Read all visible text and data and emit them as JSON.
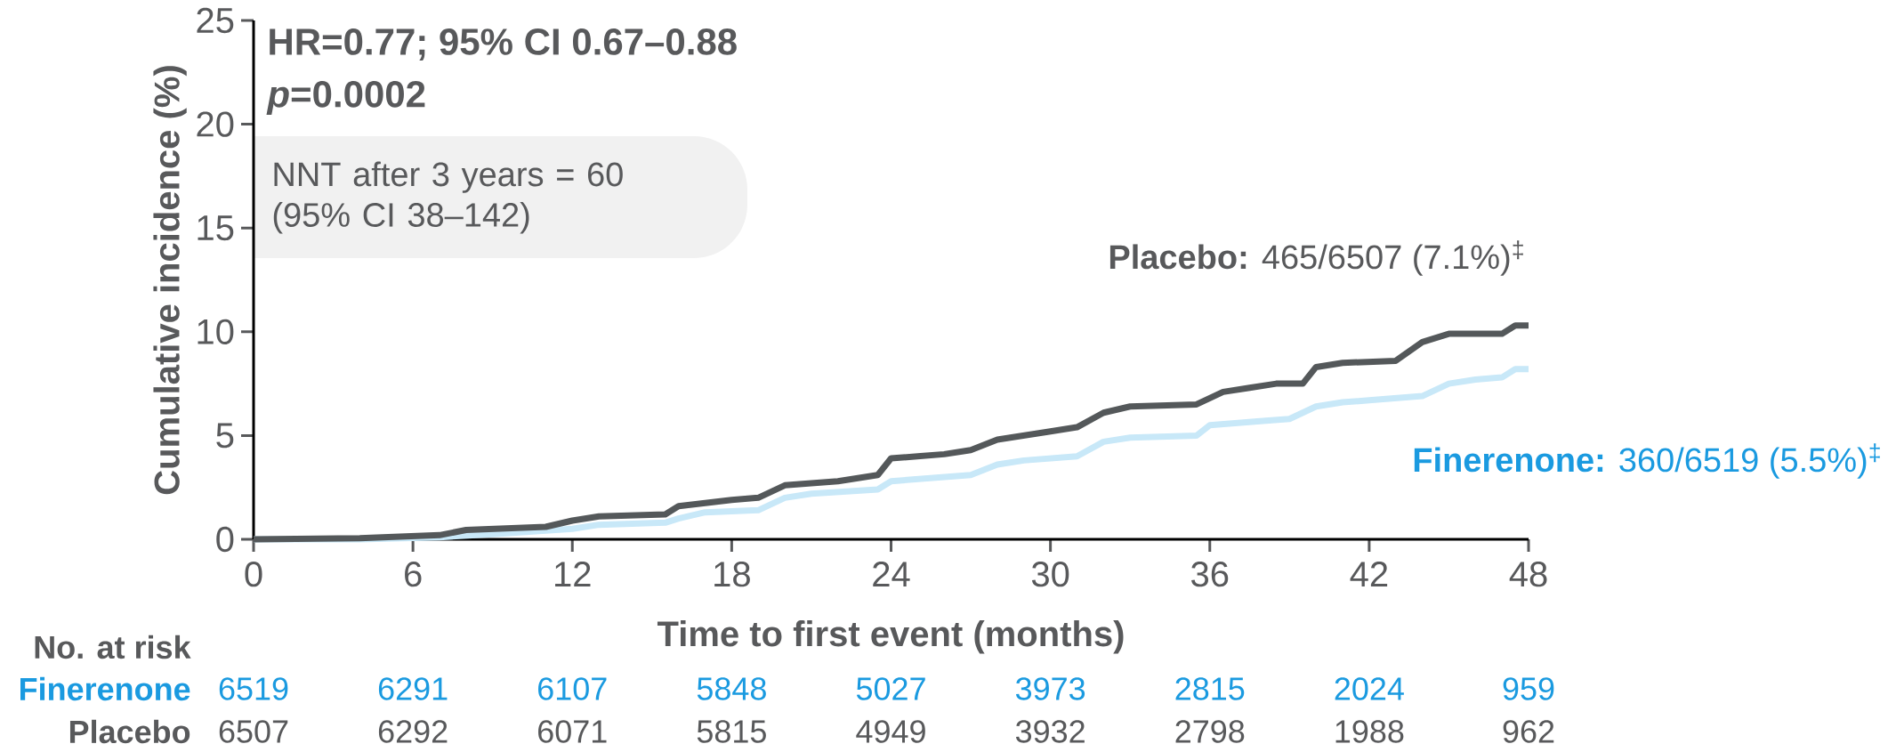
{
  "chart_data": {
    "type": "line",
    "xlabel": "Time to first event (months)",
    "ylabel": "Cumulative incidence (%)",
    "xlim": [
      0,
      48
    ],
    "xticks": [
      0,
      6,
      12,
      18,
      24,
      30,
      36,
      42,
      48
    ],
    "ylim": [
      0,
      25
    ],
    "yticks": [
      0,
      5,
      10,
      15,
      20,
      25
    ],
    "marker": "none",
    "series": [
      {
        "name": "**Placebo:** 465/6507 (7.1%)$^{‡}$",
        "color": "#54585a",
        "x": [
          0,
          4,
          7,
          8,
          11,
          12,
          13,
          15.5,
          16,
          18,
          19,
          20,
          22,
          23.5,
          24,
          26,
          27,
          28,
          30,
          31,
          32,
          33,
          35.5,
          36.5,
          37.5,
          38.5,
          39.5,
          40,
          41,
          43,
          44,
          45,
          47,
          47.5,
          48
        ],
        "values": [
          0,
          0.05,
          0.2,
          0.45,
          0.6,
          0.9,
          1.1,
          1.2,
          1.6,
          1.9,
          2.0,
          2.6,
          2.8,
          3.1,
          3.9,
          4.1,
          4.3,
          4.8,
          5.2,
          5.4,
          6.1,
          6.4,
          6.5,
          7.1,
          7.3,
          7.5,
          7.5,
          8.3,
          8.5,
          8.6,
          9.5,
          9.9,
          9.9,
          10.3,
          10.3
        ]
      },
      {
        "name": "**Finerenone:** 360/6519 (5.5%)$^{‡}$",
        "color": "#c8e8f8",
        "x": [
          0,
          4,
          7,
          9,
          12,
          13,
          15.5,
          16,
          17,
          19,
          20,
          21,
          23.5,
          24,
          27,
          28,
          29,
          31,
          32,
          33,
          35.5,
          36,
          38,
          39,
          40,
          41,
          42,
          44,
          45,
          46,
          47,
          47.5,
          48
        ],
        "values": [
          0,
          0,
          0.1,
          0.25,
          0.5,
          0.7,
          0.8,
          1.0,
          1.3,
          1.4,
          2.0,
          2.2,
          2.4,
          2.8,
          3.1,
          3.6,
          3.8,
          4.0,
          4.7,
          4.9,
          5.0,
          5.5,
          5.7,
          5.8,
          6.4,
          6.6,
          6.7,
          6.9,
          7.5,
          7.7,
          7.8,
          8.2,
          8.2
        ]
      }
    ],
    "annotations": [
      "HR=0.77; 95% CI 0.67–0.88",
      "*p*=0.0002",
      "NNT after 3 years = 60 (95% CI 38–142)",
      "No. at risk",
      "Finerenone",
      "6519",
      "6291",
      "6107",
      "5848",
      "5027",
      "3973",
      "2815",
      "2024",
      "959",
      "Placebo",
      "6507",
      "6292",
      "6071",
      "5815",
      "4949",
      "3932",
      "2798",
      "1988",
      "962"
    ]
  }
}
